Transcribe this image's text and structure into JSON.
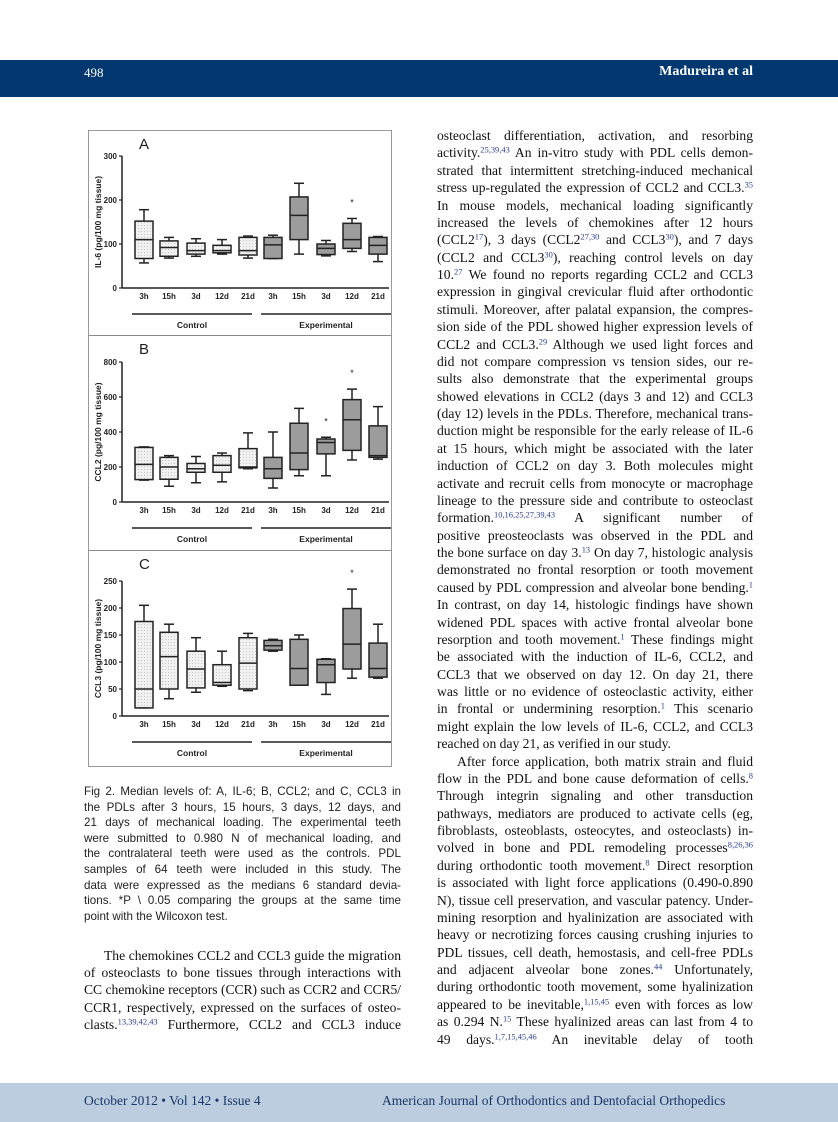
{
  "header": {
    "page_number": "498",
    "running_title": "Madureira et al"
  },
  "footer": {
    "issue": "October 2012 • Vol 142 • Issue 4",
    "journal": "American Journal of Orthodontics and Dentofacial Orthopedics"
  },
  "colors": {
    "header_bar": "#02376f",
    "footer_band": "#bccde0",
    "control_fill": "#f1f1f1",
    "experimental_fill": "#9c9c9c"
  },
  "chart_data": [
    {
      "type": "boxplot",
      "panel": "A",
      "ylabel": "IL-6 (pg/100 mg tissue)",
      "ylim": [
        0,
        300
      ],
      "yticks": [
        "0",
        "100",
        "200",
        "300"
      ],
      "categories": [
        "3h",
        "15h",
        "3d",
        "12d",
        "21d",
        "3h",
        "15h",
        "3d",
        "12d",
        "21d"
      ],
      "groups": [
        {
          "label": "Control",
          "span": [
            0,
            4
          ]
        },
        {
          "label": "Experimental",
          "span": [
            5,
            9
          ]
        }
      ],
      "stat_order": [
        "min",
        "q1",
        "median",
        "q3",
        "max"
      ],
      "boxes": [
        [
          57,
          67,
          110,
          152,
          178
        ],
        [
          68,
          72,
          92,
          107,
          115
        ],
        [
          72,
          77,
          85,
          102,
          112
        ],
        [
          77,
          80,
          85,
          97,
          110
        ],
        [
          68,
          75,
          85,
          115,
          118
        ],
        [
          67,
          67,
          98,
          115,
          120
        ],
        [
          77,
          110,
          165,
          207,
          238
        ],
        [
          73,
          76,
          90,
          100,
          108
        ],
        [
          83,
          90,
          110,
          147,
          158
        ],
        [
          60,
          77,
          97,
          115,
          117
        ]
      ],
      "significant": [
        false,
        false,
        false,
        false,
        false,
        false,
        false,
        false,
        true,
        false
      ],
      "significance_marker": "*"
    },
    {
      "type": "boxplot",
      "panel": "B",
      "ylabel": "CCL2 (pg/100 mg tissue)",
      "ylim": [
        0,
        800
      ],
      "yticks": [
        "0",
        "200",
        "400",
        "600",
        "800"
      ],
      "categories": [
        "3h",
        "15h",
        "3d",
        "12d",
        "21d",
        "3h",
        "15h",
        "3d",
        "12d",
        "21d"
      ],
      "groups": [
        {
          "label": "Control",
          "span": [
            0,
            4
          ]
        },
        {
          "label": "Experimental",
          "span": [
            5,
            9
          ]
        }
      ],
      "stat_order": [
        "min",
        "q1",
        "median",
        "q3",
        "max"
      ],
      "boxes": [
        [
          125,
          128,
          215,
          312,
          315
        ],
        [
          90,
          130,
          200,
          255,
          265
        ],
        [
          110,
          170,
          190,
          220,
          260
        ],
        [
          115,
          170,
          210,
          265,
          280
        ],
        [
          190,
          195,
          200,
          305,
          395
        ],
        [
          80,
          135,
          190,
          255,
          400
        ],
        [
          150,
          185,
          280,
          450,
          535
        ],
        [
          150,
          275,
          340,
          360,
          370
        ],
        [
          240,
          295,
          470,
          585,
          645
        ],
        [
          245,
          255,
          265,
          435,
          545
        ]
      ],
      "significant": [
        false,
        false,
        false,
        false,
        false,
        false,
        false,
        true,
        true,
        false
      ],
      "significance_marker": "*"
    },
    {
      "type": "boxplot",
      "panel": "C",
      "ylabel": "CCL3 (pg/100 mg tissue)",
      "ylim": [
        0,
        250
      ],
      "yticks": [
        "0",
        "50",
        "100",
        "150",
        "200",
        "250"
      ],
      "categories": [
        "3h",
        "15h",
        "3d",
        "12d",
        "21d",
        "3h",
        "15h",
        "3d",
        "12d",
        "21d"
      ],
      "groups": [
        {
          "label": "Control",
          "span": [
            0,
            4
          ]
        },
        {
          "label": "Experimental",
          "span": [
            5,
            9
          ]
        }
      ],
      "stat_order": [
        "min",
        "q1",
        "median",
        "q3",
        "max"
      ],
      "boxes": [
        [
          15,
          15,
          50,
          175,
          205
        ],
        [
          32,
          50,
          110,
          155,
          170
        ],
        [
          44,
          52,
          87,
          120,
          145
        ],
        [
          55,
          57,
          62,
          95,
          120
        ],
        [
          47,
          50,
          98,
          145,
          153
        ],
        [
          120,
          122,
          130,
          140,
          142
        ],
        [
          57,
          57,
          88,
          142,
          150
        ],
        [
          40,
          62,
          95,
          105,
          106
        ],
        [
          70,
          87,
          133,
          199,
          235
        ],
        [
          70,
          72,
          88,
          135,
          170
        ]
      ],
      "significant": [
        false,
        false,
        false,
        false,
        false,
        false,
        false,
        false,
        true,
        false
      ],
      "significance_marker": "*"
    }
  ],
  "caption": [
    [
      "Fig 2.  Median levels of: A, IL-6; B, CCL2; and C, CCL3 in"
    ],
    [
      "the PDLs after 3 hours, 15 hours, 3 days, 12 days, and"
    ],
    [
      "21 days of mechanical loading. The experimental teeth"
    ],
    [
      "were submitted to 0.980 N of mechanical loading, and"
    ],
    [
      "the contralateral teeth were used as the controls. PDL"
    ],
    [
      "samples of 64 teeth were included in this study. The"
    ],
    [
      "data were expressed as the medians 6 standard devia-"
    ],
    [
      "tions. *P \\ 0.05 comparing the groups at the same time"
    ],
    [
      "point with the Wilcoxon test."
    ]
  ],
  "left_body": [
    [
      "The chemokines CCL2 and CCL3 guide the migration"
    ],
    [
      "of osteoclasts to bone tissues through interactions with"
    ],
    [
      "CC chemokine receptors (CCR) such as CCR2 and CCR5/"
    ],
    [
      "CCR1, respectively, expressed on the surfaces of osteo-"
    ],
    [
      "clasts.",
      {
        "sup": "13,39,42,43"
      },
      " Furthermore, CCL2 and CCL3 induce"
    ]
  ],
  "right_body": [
    [
      "osteoclast differentiation, activation, and resorbing"
    ],
    [
      "activity.",
      {
        "sup": "25,39,43"
      },
      " An in-vitro study with PDL cells demon-"
    ],
    [
      "strated that intermittent stretching-induced mechanical"
    ],
    [
      "stress up-regulated the expression of CCL2 and CCL3.",
      {
        "sup": "35"
      }
    ],
    [
      "In mouse models, mechanical loading significantly"
    ],
    [
      "increased the levels of chemokines after 12 hours"
    ],
    [
      "(CCL2",
      {
        "sup": "17"
      },
      "), 3 days (CCL2",
      {
        "sup": "27,30"
      },
      " and CCL3",
      {
        "sup": "30"
      },
      "), and 7 days"
    ],
    [
      "(CCL2 and CCL3",
      {
        "sup": "30"
      },
      "), reaching control levels on day"
    ],
    [
      "10.",
      {
        "sup": "27"
      },
      " We found no reports regarding CCL2 and CCL3"
    ],
    [
      "expression in gingival crevicular fluid after orthodontic"
    ],
    [
      "stimuli. Moreover, after palatal expansion, the compres-"
    ],
    [
      "sion side of the PDL showed higher expression levels of"
    ],
    [
      "CCL2 and CCL3.",
      {
        "sup": "29"
      },
      " Although we used light forces and"
    ],
    [
      "did not compare compression vs tension sides, our re-"
    ],
    [
      "sults also demonstrate that the experimental groups"
    ],
    [
      "showed elevations in CCL2 (days 3 and 12) and CCL3"
    ],
    [
      "(day 12) levels in the PDLs. Therefore, mechanical trans-"
    ],
    [
      "duction might be responsible for the early release of IL-6"
    ],
    [
      "at 15 hours, which might be associated with the later"
    ],
    [
      "induction of CCL2 on day 3. Both molecules might"
    ],
    [
      "activate and recruit cells from monocyte or macrophage"
    ],
    [
      "lineage to the pressure side and contribute to osteoclast"
    ],
    [
      "formation.",
      {
        "sup": "10,16,25,27,39,43"
      },
      "  A significant number of"
    ],
    [
      "positive preosteoclasts was observed in the PDL and"
    ],
    [
      "the bone surface on day 3.",
      {
        "sup": "13"
      },
      " On day 7, histologic analysis"
    ],
    [
      "demonstrated no frontal resorption or tooth movement"
    ],
    [
      "caused by PDL compression and alveolar bone bending.",
      {
        "sup": "1"
      }
    ],
    [
      "In contrast, on day 14, histologic findings have shown"
    ],
    [
      "widened PDL spaces with active frontal alveolar bone"
    ],
    [
      "resorption and tooth movement.",
      {
        "sup": "1"
      },
      " These findings might"
    ],
    [
      "be associated with the induction of IL-6, CCL2, and"
    ],
    [
      "CCL3 that we observed on day 12. On day 21, there"
    ],
    [
      "was little or no evidence of osteoclastic activity, either"
    ],
    [
      "in frontal or undermining resorption.",
      {
        "sup": "1"
      },
      " This scenario"
    ],
    [
      "might explain the low levels of IL-6, CCL2, and CCL3"
    ],
    [
      "reached on day 21, as verified in our study."
    ],
    [
      "After force application, both matrix strain and fluid"
    ],
    [
      "flow in the PDL and bone cause deformation of cells.",
      {
        "sup": "8"
      }
    ],
    [
      "Through integrin signaling and other transduction"
    ],
    [
      "pathways, mediators are produced to activate cells (eg,"
    ],
    [
      "fibroblasts, osteoblasts, osteocytes, and osteoclasts) in-"
    ],
    [
      "volved in bone and PDL remodeling processes",
      {
        "sup": "8,26,36"
      }
    ],
    [
      "during orthodontic tooth movement.",
      {
        "sup": "8"
      },
      " Direct resorption"
    ],
    [
      "is associated with light force applications (0.490-0.890"
    ],
    [
      "N), tissue cell preservation, and vascular patency. Under-"
    ],
    [
      "mining resorption and hyalinization are associated with"
    ],
    [
      "heavy or necrotizing forces causing crushing injuries to"
    ],
    [
      "PDL tissues, cell death, hemostasis, and cell-free PDLs"
    ],
    [
      "and adjacent alveolar bone zones.",
      {
        "sup": "44"
      },
      " Unfortunately,"
    ],
    [
      "during orthodontic tooth movement, some hyalinization"
    ],
    [
      "appeared to be inevitable,",
      {
        "sup": "1,15,45"
      },
      " even with forces as low"
    ],
    [
      "as 0.294 N.",
      {
        "sup": "15"
      },
      " These hyalinized areas can last from 4 to"
    ],
    [
      "49 days.",
      {
        "sup": "1,7,15,45,46"
      },
      "  An inevitable delay of tooth"
    ]
  ]
}
